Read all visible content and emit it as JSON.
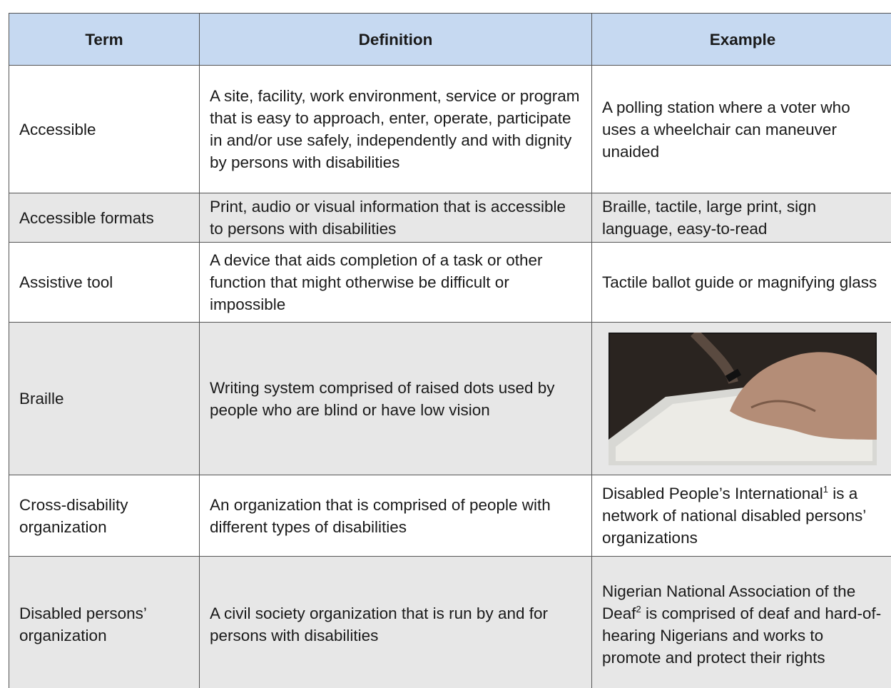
{
  "table": {
    "headers": [
      "Term",
      "Definition",
      "Example"
    ],
    "rows": [
      {
        "term": "Accessible",
        "definition": "A site, facility, work environment, service or program that is easy to approach, enter, operate, participate in and/or use safely, independently and with dignity by persons with disabilities",
        "example": "A polling station where a voter who uses a wheelchair can maneuver unaided"
      },
      {
        "term": "Accessible formats",
        "definition": "Print, audio or visual information that is accessible to persons with disabilities",
        "example": "Braille, tactile, large print, sign language, easy-to-read"
      },
      {
        "term": "Assistive tool",
        "definition": "A device that aids completion of a task or other function that might otherwise be difficult or impossible",
        "example": "Tactile ballot guide or magnifying glass"
      },
      {
        "term": "Braille",
        "definition": "Writing system comprised of raised dots used by people who are blind or have low vision"
      },
      {
        "term": "Cross-disability organization",
        "definition": "An organization that is comprised of people with different types of disabilities",
        "example": {
          "before": "Disabled People’s International",
          "note": "1",
          "after": " is a network of national disabled persons’ organizations"
        }
      },
      {
        "term": "Disabled persons’ organization",
        "definition": "A civil society organization that is run by and for persons with disabilities",
        "example": {
          "before": "Nigerian National Association of the Deaf",
          "note": "2",
          "after": " is comprised of deaf and hard-of-hearing Nigerians and works to promote and protect their rights"
        }
      }
    ]
  }
}
